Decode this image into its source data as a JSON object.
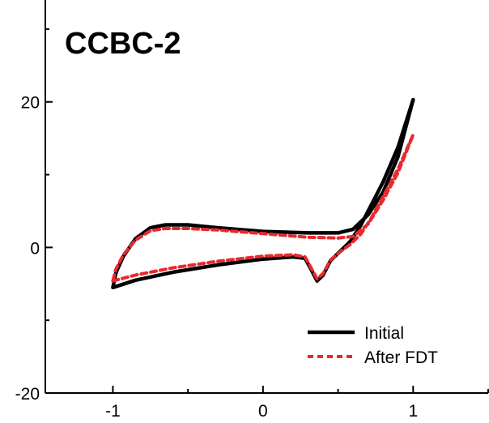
{
  "chart_data": {
    "type": "line",
    "title": "CCBC-2",
    "xlabel": "",
    "ylabel": "",
    "xlim": [
      -1.45,
      1.5
    ],
    "ylim": [
      -20,
      34
    ],
    "x_ticks": [
      -1,
      0,
      1
    ],
    "y_ticks": [
      -20,
      0,
      20
    ],
    "x_tick_labels": [
      "-1",
      "0",
      "1"
    ],
    "y_tick_labels": [
      "-20",
      "0",
      "20"
    ],
    "grid": false,
    "legend_position": "bottom-right",
    "series": [
      {
        "name": "Initial",
        "color": "#000000",
        "style": "solid",
        "points": [
          [
            -1.0,
            -5.5
          ],
          [
            -0.85,
            -4.5
          ],
          [
            -0.6,
            -3.4
          ],
          [
            -0.3,
            -2.4
          ],
          [
            0.0,
            -1.6
          ],
          [
            0.2,
            -1.3
          ],
          [
            0.28,
            -1.5
          ],
          [
            0.32,
            -3.0
          ],
          [
            0.36,
            -4.6
          ],
          [
            0.4,
            -3.8
          ],
          [
            0.45,
            -1.8
          ],
          [
            0.52,
            -0.4
          ],
          [
            0.58,
            0.8
          ],
          [
            0.65,
            3.0
          ],
          [
            0.72,
            5.8
          ],
          [
            0.8,
            9.0
          ],
          [
            0.9,
            13.8
          ],
          [
            1.0,
            20.3
          ],
          [
            0.9,
            12.5
          ],
          [
            0.8,
            7.6
          ],
          [
            0.7,
            4.5
          ],
          [
            0.6,
            2.5
          ],
          [
            0.5,
            2.0
          ],
          [
            0.3,
            2.0
          ],
          [
            0.0,
            2.2
          ],
          [
            -0.3,
            2.7
          ],
          [
            -0.5,
            3.1
          ],
          [
            -0.65,
            3.1
          ],
          [
            -0.75,
            2.7
          ],
          [
            -0.85,
            1.2
          ],
          [
            -0.93,
            -1.2
          ],
          [
            -0.98,
            -3.5
          ],
          [
            -1.0,
            -5.5
          ]
        ]
      },
      {
        "name": "After FDT",
        "color": "#e8292e",
        "style": "dashed",
        "points": [
          [
            -1.0,
            -4.6
          ],
          [
            -0.85,
            -3.8
          ],
          [
            -0.6,
            -2.8
          ],
          [
            -0.3,
            -1.9
          ],
          [
            0.0,
            -1.2
          ],
          [
            0.2,
            -1.0
          ],
          [
            0.28,
            -1.3
          ],
          [
            0.32,
            -2.8
          ],
          [
            0.36,
            -4.3
          ],
          [
            0.4,
            -3.6
          ],
          [
            0.45,
            -1.7
          ],
          [
            0.52,
            -0.5
          ],
          [
            0.58,
            0.4
          ],
          [
            0.65,
            1.8
          ],
          [
            0.72,
            4.0
          ],
          [
            0.8,
            7.0
          ],
          [
            0.9,
            10.8
          ],
          [
            1.0,
            15.5
          ],
          [
            0.9,
            10.3
          ],
          [
            0.8,
            6.5
          ],
          [
            0.7,
            3.2
          ],
          [
            0.6,
            1.5
          ],
          [
            0.5,
            1.3
          ],
          [
            0.3,
            1.4
          ],
          [
            0.0,
            1.9
          ],
          [
            -0.3,
            2.4
          ],
          [
            -0.5,
            2.6
          ],
          [
            -0.65,
            2.6
          ],
          [
            -0.75,
            2.3
          ],
          [
            -0.85,
            1.0
          ],
          [
            -0.93,
            -1.0
          ],
          [
            -0.98,
            -3.0
          ],
          [
            -1.0,
            -4.6
          ]
        ]
      }
    ]
  }
}
